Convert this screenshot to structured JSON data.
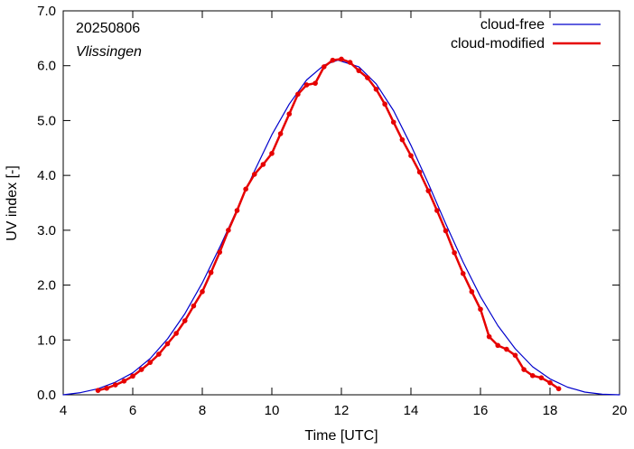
{
  "chart_data": {
    "type": "line",
    "date_label": "20250806",
    "location_label": "Vlissingen",
    "xlabel": "Time  [UTC]",
    "ylabel": "UV index  [-]",
    "xlim": [
      4,
      20
    ],
    "ylim": [
      0,
      7
    ],
    "xticks": [
      "4",
      "6",
      "8",
      "10",
      "12",
      "14",
      "16",
      "18",
      "20"
    ],
    "yticks": [
      "0.0",
      "1.0",
      "2.0",
      "3.0",
      "4.0",
      "5.0",
      "6.0",
      "7.0"
    ],
    "grid": false,
    "legend_position": "top-right",
    "series": [
      {
        "name": "cloud-free",
        "color": "#0000cc",
        "markers": false,
        "x": [
          4.0,
          4.5,
          5.0,
          5.5,
          6.0,
          6.5,
          7.0,
          7.5,
          8.0,
          8.5,
          9.0,
          9.5,
          10.0,
          10.5,
          11.0,
          11.5,
          11.9,
          12.5,
          13.0,
          13.5,
          14.0,
          14.5,
          15.0,
          15.5,
          16.0,
          16.5,
          17.0,
          17.5,
          18.0,
          18.5,
          19.0,
          19.5,
          20.0
        ],
        "y": [
          0.0,
          0.04,
          0.11,
          0.23,
          0.4,
          0.66,
          1.02,
          1.48,
          2.04,
          2.69,
          3.38,
          4.08,
          4.74,
          5.3,
          5.74,
          6.01,
          6.1,
          5.98,
          5.67,
          5.18,
          4.55,
          3.85,
          3.12,
          2.42,
          1.79,
          1.26,
          0.84,
          0.51,
          0.29,
          0.14,
          0.05,
          0.01,
          0.0
        ]
      },
      {
        "name": "cloud-modified",
        "color": "#e60000",
        "markers": true,
        "x": [
          5.0,
          5.25,
          5.5,
          5.75,
          6.0,
          6.25,
          6.5,
          6.75,
          7.0,
          7.25,
          7.5,
          7.75,
          8.0,
          8.25,
          8.5,
          8.75,
          9.0,
          9.25,
          9.5,
          9.75,
          10.0,
          10.25,
          10.5,
          10.75,
          11.0,
          11.25,
          11.5,
          11.75,
          12.0,
          12.25,
          12.5,
          12.75,
          13.0,
          13.25,
          13.5,
          13.75,
          14.0,
          14.25,
          14.5,
          14.75,
          15.0,
          15.25,
          15.5,
          15.75,
          16.0,
          16.25,
          16.5,
          16.75,
          17.0,
          17.25,
          17.5,
          17.75,
          18.0,
          18.25
        ],
        "y": [
          0.08,
          0.12,
          0.18,
          0.25,
          0.34,
          0.46,
          0.59,
          0.74,
          0.93,
          1.12,
          1.35,
          1.62,
          1.88,
          2.23,
          2.6,
          3.0,
          3.36,
          3.75,
          4.02,
          4.2,
          4.4,
          4.76,
          5.12,
          5.48,
          5.65,
          5.68,
          5.98,
          6.1,
          6.12,
          6.06,
          5.91,
          5.78,
          5.57,
          5.3,
          4.97,
          4.65,
          4.36,
          4.06,
          3.72,
          3.36,
          2.99,
          2.59,
          2.21,
          1.88,
          1.56,
          1.06,
          0.9,
          0.83,
          0.72,
          0.46,
          0.35,
          0.31,
          0.22,
          0.11
        ]
      }
    ]
  }
}
